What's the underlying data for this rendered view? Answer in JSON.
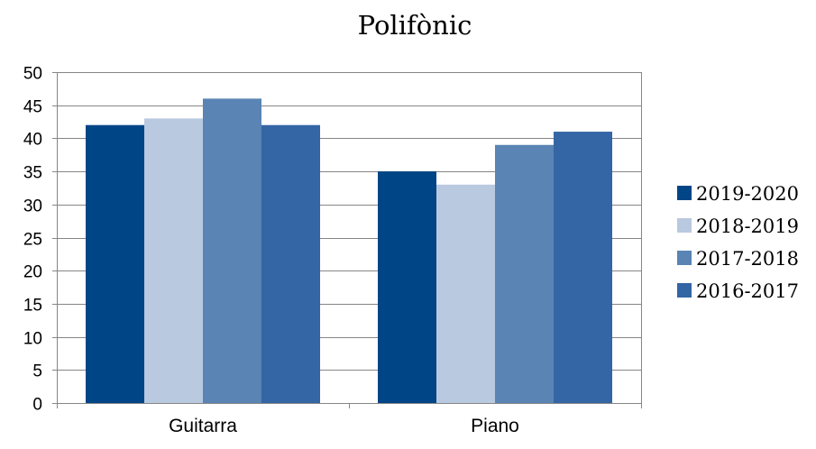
{
  "chart_data": {
    "type": "bar",
    "title": "Polifònic",
    "xlabel": "",
    "ylabel": "",
    "categories": [
      "Guitarra",
      "Piano"
    ],
    "series": [
      {
        "name": "2019-2020",
        "values": [
          42,
          35
        ],
        "color": "#004586"
      },
      {
        "name": "2018-2019",
        "values": [
          43,
          33
        ],
        "color": "#b9c9e0"
      },
      {
        "name": "2017-2018",
        "values": [
          46,
          39
        ],
        "color": "#5984b3"
      },
      {
        "name": "2016-2017",
        "values": [
          42,
          41
        ],
        "color": "#3465a4"
      }
    ],
    "ylim": [
      0,
      50
    ],
    "yticks": [
      0,
      5,
      10,
      15,
      20,
      25,
      30,
      35,
      40,
      45,
      50
    ],
    "grid": true,
    "legend_position": "right"
  }
}
